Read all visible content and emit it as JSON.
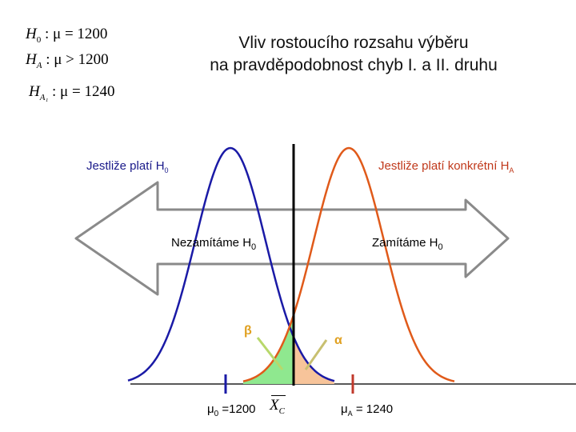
{
  "hypotheses": {
    "h0": {
      "symbol": "H",
      "sub": "0",
      "rel": ": μ = 1200"
    },
    "ha": {
      "symbol": "H",
      "sub": "A",
      "rel": ": μ > 1200"
    },
    "ha1": {
      "symbol": "H",
      "sub": "A₁",
      "rel": ": μ = 1240"
    }
  },
  "title": {
    "line1": "Vliv rostoucího rozsahu výběru",
    "line2": "na pravděpodobnost chyb I. a II. druhu"
  },
  "labels": {
    "if_h0": "Jestliže platí H",
    "if_h0_sub": "0",
    "if_ha": "Jestliže platí konkrétní H",
    "if_ha_sub": "A",
    "not_reject": "Nezamítáme H",
    "not_reject_sub": "0",
    "reject": "Zamítáme H",
    "reject_sub": "0",
    "beta": "β",
    "alpha": "α",
    "mu0_sym": "μ",
    "mu0_sub": "0",
    "mu0_val": " =1200",
    "xc_sym": "X",
    "xc_sub": "C",
    "muA_sym": "μ",
    "muA_sub": "A",
    "muA_val": " = 1240"
  },
  "colors": {
    "h0_curve": "#1a1aa6",
    "ha_curve": "#e05a1a",
    "beta_fill": "#8fe88f",
    "alpha_fill": "#f7c49a",
    "beta_pointer": "#b8d86b",
    "alpha_pointer": "#c8c070",
    "arrow_fill": "#ffffff",
    "arrow_stroke": "#8a8a8a",
    "greek_color": "#e0a020"
  }
}
